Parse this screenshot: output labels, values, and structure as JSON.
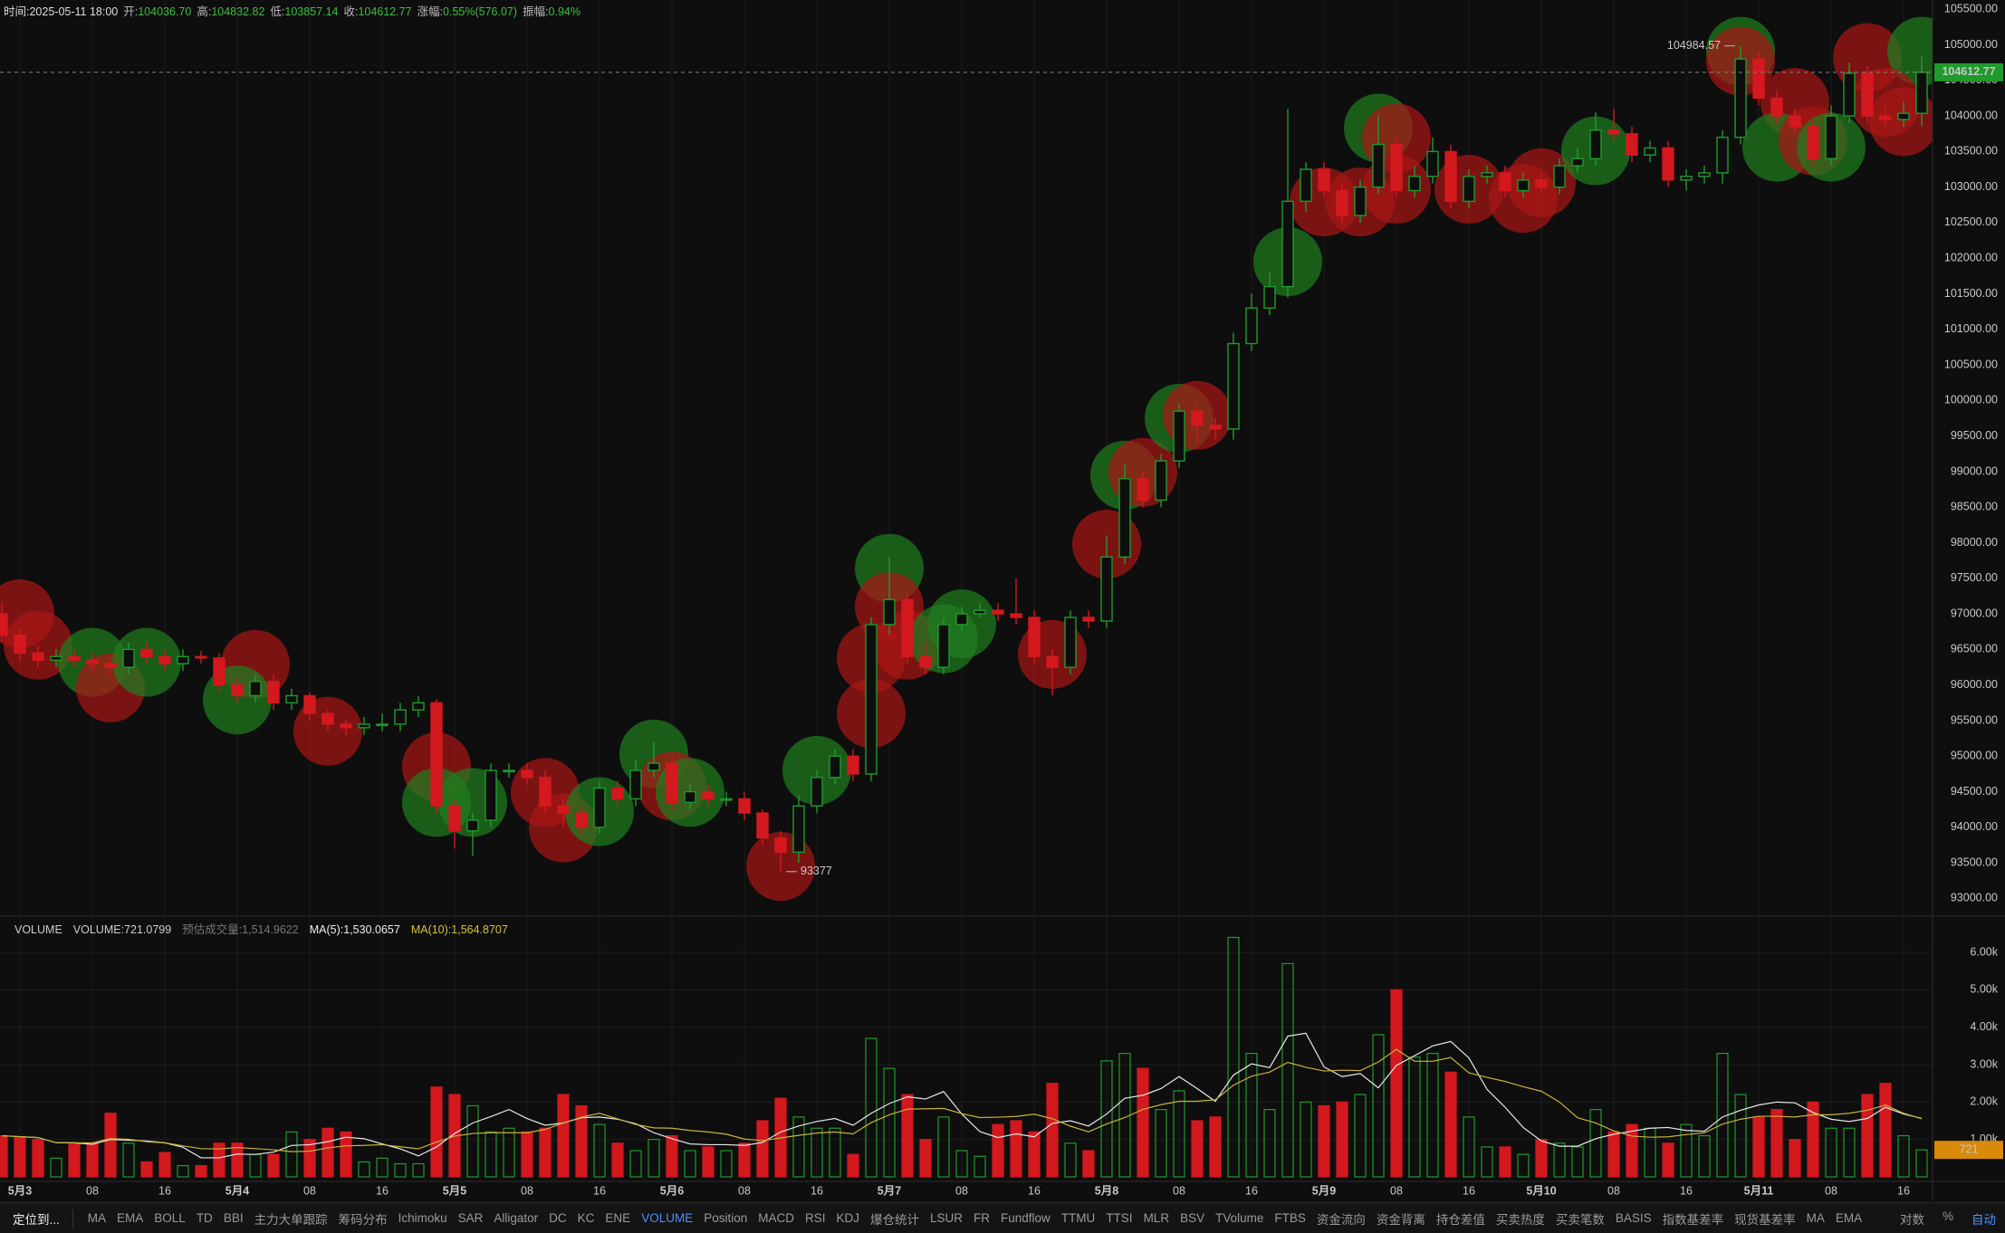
{
  "header": {
    "time": "时间:2025-05-11 18:00",
    "fields": [
      {
        "label": "开:",
        "value": "104036.70"
      },
      {
        "label": "高:",
        "value": "104832.82"
      },
      {
        "label": "低:",
        "value": "103857.14"
      },
      {
        "label": "收:",
        "value": "104612.77"
      },
      {
        "label": "涨幅:",
        "value": "0.55%(576.07)"
      },
      {
        "label": "振幅:",
        "value": "0.94%"
      }
    ]
  },
  "volume_header": {
    "indicator": "VOLUME",
    "fields": [
      "VOLUME:721.0799",
      "预估成交量:1,514.9622",
      "MA(5):1,530.0657",
      "MA(10):1,564.8707"
    ]
  },
  "toolbar": {
    "locate": "定位到...",
    "indicators": [
      "MA",
      "EMA",
      "BOLL",
      "TD",
      "BBI",
      "主力大单跟踪",
      "筹码分布",
      "Ichimoku",
      "SAR",
      "Alligator",
      "DC",
      "KC",
      "ENE",
      "VOLUME",
      "Position",
      "MACD",
      "RSI",
      "KDJ",
      "爆仓统计",
      "LSUR",
      "FR",
      "Fundflow",
      "TTMU",
      "TTSI",
      "MLR",
      "BSV",
      "TVolume",
      "FTBS",
      "资金流向",
      "资金背离",
      "持仓差值",
      "买卖热度",
      "买卖笔数",
      "BASIS",
      "指数基差率",
      "现货基差率",
      "MA",
      "EMA"
    ],
    "active": "VOLUME",
    "controls": [
      "对数",
      "%",
      "自动"
    ]
  },
  "chart_data": [
    {
      "type": "candlestick",
      "up_color": "#1f9a2b",
      "down_color": "#d3181e",
      "grid": true,
      "ylim": [
        92840,
        105630
      ],
      "yticks": [
        {
          "value": 93000,
          "label": "93000.00"
        },
        {
          "value": 93500,
          "label": "93500.00"
        },
        {
          "value": 94000,
          "label": "94000.00"
        },
        {
          "value": 94500,
          "label": "94500.00"
        },
        {
          "value": 95000,
          "label": "95000.00"
        },
        {
          "value": 95500,
          "label": "95500.00"
        },
        {
          "value": 96000,
          "label": "96000.00"
        },
        {
          "value": 96500,
          "label": "96500.00"
        },
        {
          "value": 97000,
          "label": "97000.00"
        },
        {
          "value": 97500,
          "label": "97500.00"
        },
        {
          "value": 98000,
          "label": "98000.00"
        },
        {
          "value": 98500,
          "label": "98500.00"
        },
        {
          "value": 99000,
          "label": "99000.00"
        },
        {
          "value": 99500,
          "label": "99500.00"
        },
        {
          "value": 100000,
          "label": "100000.00"
        },
        {
          "value": 100500,
          "label": "100500.00"
        },
        {
          "value": 101000,
          "label": "101000.00"
        },
        {
          "value": 101500,
          "label": "101500.00"
        },
        {
          "value": 102000,
          "label": "102000.00"
        },
        {
          "value": 102500,
          "label": "102500.00"
        },
        {
          "value": 103000,
          "label": "103000.00"
        },
        {
          "value": 103500,
          "label": "103500.00"
        },
        {
          "value": 104000,
          "label": "104000.00"
        },
        {
          "value": 104500,
          "label": "104500.00"
        },
        {
          "value": 105000,
          "label": "105000.00"
        },
        {
          "value": 105500,
          "label": "105500.00"
        }
      ],
      "xticks": [
        {
          "value": 1,
          "label": "5月3"
        },
        {
          "value": 5,
          "label": "08"
        },
        {
          "value": 9,
          "label": "16"
        },
        {
          "value": 13,
          "label": "5月4"
        },
        {
          "value": 17,
          "label": "08"
        },
        {
          "value": 21,
          "label": "16"
        },
        {
          "value": 25,
          "label": "5月5"
        },
        {
          "value": 29,
          "label": "08"
        },
        {
          "value": 33,
          "label": "16"
        },
        {
          "value": 37,
          "label": "5月6"
        },
        {
          "value": 41,
          "label": "08"
        },
        {
          "value": 45,
          "label": "16"
        },
        {
          "value": 49,
          "label": "5月7"
        },
        {
          "value": 53,
          "label": "08"
        },
        {
          "value": 57,
          "label": "16"
        },
        {
          "value": 61,
          "label": "5月8"
        },
        {
          "value": 65,
          "label": "08"
        },
        {
          "value": 69,
          "label": "16"
        },
        {
          "value": 73,
          "label": "5月9"
        },
        {
          "value": 77,
          "label": "08"
        },
        {
          "value": 81,
          "label": "16"
        },
        {
          "value": 85,
          "label": "5月10"
        },
        {
          "value": 89,
          "label": "08"
        },
        {
          "value": 93,
          "label": "16"
        },
        {
          "value": 97,
          "label": "5月11"
        },
        {
          "value": 101,
          "label": "08"
        },
        {
          "value": 105,
          "label": "16"
        }
      ],
      "open": [
        97000,
        96700,
        96450,
        96350,
        96400,
        96350,
        96300,
        96250,
        96500,
        96400,
        96300,
        96400,
        96380,
        96000,
        95850,
        96050,
        95750,
        95850,
        95600,
        95450,
        95400,
        95450,
        95450,
        95650,
        95750,
        94300,
        93950,
        94100,
        94800,
        94800,
        94700,
        94300,
        94200,
        94000,
        94550,
        94400,
        94800,
        94900,
        94350,
        94500,
        94400,
        94400,
        94200,
        93850,
        93650,
        94300,
        94700,
        95000,
        94750,
        96850,
        97200,
        96400,
        96250,
        96850,
        97000,
        97050,
        97000,
        96950,
        96400,
        96250,
        96950,
        96900,
        97800,
        98900,
        98600,
        99150,
        99850,
        99650,
        99600,
        100800,
        101300,
        101600,
        102800,
        103250,
        102950,
        102600,
        103000,
        103600,
        102950,
        103150,
        103500,
        102800,
        103150,
        103200,
        102950,
        103100,
        103000,
        103300,
        103400,
        103800,
        103750,
        103450,
        103550,
        103100,
        103150,
        103200,
        103700,
        104800,
        104250,
        104000,
        103850,
        103400,
        104000,
        104600,
        104000,
        103950,
        104036.7
      ],
      "high": [
        97150,
        96800,
        96550,
        96500,
        96500,
        96450,
        96400,
        96600,
        96600,
        96500,
        96500,
        96480,
        96450,
        96100,
        96150,
        96150,
        95950,
        95900,
        95650,
        95500,
        95550,
        95600,
        95750,
        95850,
        95800,
        94400,
        94200,
        94900,
        94900,
        94900,
        94800,
        94400,
        94300,
        94650,
        94650,
        94950,
        95200,
        95000,
        94600,
        94600,
        94500,
        94500,
        94250,
        93950,
        94450,
        94800,
        95100,
        95100,
        96950,
        97800,
        97300,
        96600,
        96950,
        97100,
        97150,
        97150,
        97500,
        97050,
        96500,
        97050,
        97050,
        98100,
        99100,
        99000,
        99250,
        99950,
        99950,
        99750,
        100950,
        101500,
        101800,
        104100,
        103350,
        103350,
        103050,
        103100,
        104000,
        103700,
        103300,
        103700,
        103600,
        103250,
        103300,
        103300,
        103200,
        103200,
        103400,
        103550,
        104050,
        104100,
        103850,
        103650,
        103650,
        103250,
        103300,
        103800,
        104984.57,
        104900,
        104350,
        104100,
        103950,
        104150,
        104750,
        104700,
        104150,
        104200,
        104832.82
      ],
      "low": [
        96600,
        96350,
        96250,
        96250,
        96250,
        96200,
        96150,
        96150,
        96300,
        96200,
        96200,
        96300,
        95900,
        95750,
        95750,
        95650,
        95650,
        95500,
        95350,
        95300,
        95300,
        95350,
        95350,
        95550,
        94200,
        93700,
        93600,
        94000,
        94700,
        94600,
        94200,
        94000,
        93900,
        93900,
        94300,
        94300,
        94700,
        94250,
        94250,
        94300,
        94300,
        94100,
        93750,
        93377,
        93500,
        94200,
        94600,
        94650,
        94650,
        96700,
        96300,
        96150,
        96150,
        96750,
        96950,
        96900,
        96850,
        96300,
        95850,
        96150,
        96800,
        96800,
        97700,
        98500,
        98500,
        99050,
        99400,
        99450,
        99450,
        100700,
        101200,
        101450,
        102650,
        102850,
        102500,
        102500,
        102900,
        102850,
        102850,
        103050,
        102700,
        102700,
        103050,
        102850,
        102850,
        102900,
        102900,
        103200,
        103300,
        103650,
        103350,
        103350,
        103000,
        102950,
        103050,
        103050,
        103600,
        104150,
        103900,
        103750,
        103300,
        103300,
        103900,
        103900,
        103850,
        103850,
        103857.14
      ],
      "close": [
        96700,
        96450,
        96350,
        96400,
        96350,
        96300,
        96250,
        96500,
        96400,
        96300,
        96400,
        96380,
        96000,
        95850,
        96050,
        95750,
        95850,
        95600,
        95450,
        95400,
        95450,
        95450,
        95650,
        95750,
        94300,
        93950,
        94100,
        94800,
        94800,
        94700,
        94300,
        94200,
        94000,
        94550,
        94400,
        94800,
        94900,
        94350,
        94500,
        94400,
        94400,
        94200,
        93850,
        93650,
        94300,
        94700,
        95000,
        94750,
        96850,
        97200,
        96400,
        96250,
        96850,
        97000,
        97050,
        97000,
        96950,
        96400,
        96250,
        96950,
        96900,
        97800,
        98900,
        98600,
        99150,
        99850,
        99650,
        99600,
        100800,
        101300,
        101600,
        102800,
        103250,
        102950,
        102600,
        103000,
        103600,
        102950,
        103150,
        103500,
        102800,
        103150,
        103200,
        102950,
        103100,
        103000,
        103300,
        103400,
        103800,
        103750,
        103450,
        103550,
        103100,
        103150,
        103200,
        103700,
        104800,
        104250,
        104000,
        103850,
        103400,
        104000,
        104600,
        104000,
        103950,
        104036.7,
        104612.77
      ],
      "bubbles": [
        {
          "x": 1,
          "price": 97000,
          "color": "#a81616"
        },
        {
          "x": 2,
          "price": 96560,
          "color": "#a81616"
        },
        {
          "x": 5,
          "price": 96320,
          "color": "#1e7d1e"
        },
        {
          "x": 6,
          "price": 95960,
          "color": "#a81616"
        },
        {
          "x": 8,
          "price": 96320,
          "color": "#1e7d1e"
        },
        {
          "x": 14,
          "price": 96290,
          "color": "#a81616"
        },
        {
          "x": 13,
          "price": 95790,
          "color": "#1e7d1e"
        },
        {
          "x": 18,
          "price": 95350,
          "color": "#a81616"
        },
        {
          "x": 24,
          "price": 94850,
          "color": "#a81616"
        },
        {
          "x": 24,
          "price": 94350,
          "color": "#1e7d1e"
        },
        {
          "x": 26,
          "price": 94350,
          "color": "#1e7d1e"
        },
        {
          "x": 30,
          "price": 94490,
          "color": "#a81616"
        },
        {
          "x": 31,
          "price": 93990,
          "color": "#a81616"
        },
        {
          "x": 33,
          "price": 94220,
          "color": "#1e7d1e"
        },
        {
          "x": 36,
          "price": 95030,
          "color": "#1e7d1e"
        },
        {
          "x": 37,
          "price": 94580,
          "color": "#a81616"
        },
        {
          "x": 38,
          "price": 94490,
          "color": "#1e7d1e"
        },
        {
          "x": 43,
          "price": 93450,
          "color": "#a81616"
        },
        {
          "x": 45,
          "price": 94800,
          "color": "#1e7d1e"
        },
        {
          "x": 49,
          "price": 97640,
          "color": "#1e7d1e"
        },
        {
          "x": 49,
          "price": 97100,
          "color": "#a81616"
        },
        {
          "x": 48,
          "price": 96380,
          "color": "#a81616"
        },
        {
          "x": 48,
          "price": 95600,
          "color": "#a81616"
        },
        {
          "x": 50,
          "price": 96560,
          "color": "#a81616"
        },
        {
          "x": 53,
          "price": 96860,
          "color": "#1e7d1e"
        },
        {
          "x": 52,
          "price": 96650,
          "color": "#1e7d1e"
        },
        {
          "x": 58,
          "price": 96430,
          "color": "#a81616"
        },
        {
          "x": 61,
          "price": 97980,
          "color": "#a81616"
        },
        {
          "x": 62,
          "price": 98950,
          "color": "#1e7d1e"
        },
        {
          "x": 63,
          "price": 98990,
          "color": "#a81616"
        },
        {
          "x": 65,
          "price": 99750,
          "color": "#1e7d1e"
        },
        {
          "x": 66,
          "price": 99790,
          "color": "#a81616"
        },
        {
          "x": 71,
          "price": 101950,
          "color": "#1e7d1e"
        },
        {
          "x": 76,
          "price": 103830,
          "color": "#1e7d1e"
        },
        {
          "x": 77,
          "price": 103690,
          "color": "#a81616"
        },
        {
          "x": 73,
          "price": 102790,
          "color": "#a81616"
        },
        {
          "x": 75,
          "price": 102790,
          "color": "#a81616"
        },
        {
          "x": 77,
          "price": 102970,
          "color": "#a81616"
        },
        {
          "x": 81,
          "price": 102970,
          "color": "#a81616"
        },
        {
          "x": 84,
          "price": 102840,
          "color": "#a81616"
        },
        {
          "x": 85,
          "price": 103060,
          "color": "#a81616"
        },
        {
          "x": 88,
          "price": 103510,
          "color": "#1e7d1e"
        },
        {
          "x": 96,
          "price": 104910,
          "color": "#1e7d1e"
        },
        {
          "x": 96,
          "price": 104770,
          "color": "#a81616"
        },
        {
          "x": 99,
          "price": 104190,
          "color": "#a81616"
        },
        {
          "x": 98,
          "price": 103560,
          "color": "#1e7d1e"
        },
        {
          "x": 100,
          "price": 103650,
          "color": "#a81616"
        },
        {
          "x": 101,
          "price": 103560,
          "color": "#1e7d1e"
        },
        {
          "x": 103,
          "price": 104820,
          "color": "#a81616"
        },
        {
          "x": 106,
          "price": 104910,
          "color": "#1e7d1e"
        },
        {
          "x": 104,
          "price": 104190,
          "color": "#a81616"
        },
        {
          "x": 105,
          "price": 103920,
          "color": "#a81616"
        }
      ]
    },
    {
      "type": "bar",
      "ylim": [
        0,
        6920
      ],
      "yticks": [
        {
          "value": 1000,
          "label": "1.00k"
        },
        {
          "value": 2000,
          "label": "2.00k"
        },
        {
          "value": 3000,
          "label": "3.00k"
        },
        {
          "value": 4000,
          "label": "4.00k"
        },
        {
          "value": 5000,
          "label": "5.00k"
        },
        {
          "value": 6000,
          "label": "6.00k"
        }
      ],
      "values": [
        1100,
        1050,
        1000,
        500,
        900,
        900,
        1700,
        900,
        400,
        650,
        300,
        300,
        900,
        900,
        600,
        600,
        1200,
        1000,
        1300,
        1200,
        400,
        500,
        350,
        350,
        2400,
        2200,
        1900,
        1200,
        1300,
        1200,
        1300,
        2200,
        1900,
        1400,
        900,
        700,
        1000,
        1100,
        700,
        800,
        700,
        900,
        1500,
        2100,
        1600,
        1300,
        1300,
        600,
        3700,
        2900,
        2200,
        1000,
        1600,
        700,
        550,
        1400,
        1500,
        1200,
        2500,
        900,
        700,
        3100,
        3300,
        2900,
        1800,
        2300,
        1500,
        1600,
        6400,
        3300,
        1800,
        5700,
        2000,
        1900,
        2000,
        2200,
        3800,
        5000,
        3200,
        3300,
        2800,
        1600,
        800,
        800,
        600,
        1000,
        900,
        800,
        1800,
        1200,
        1400,
        1300,
        900,
        1400,
        1100,
        3300,
        2200,
        1600,
        1800,
        1000,
        2000,
        1300,
        1300,
        2200,
        2500,
        1100,
        721.0799
      ],
      "last_value_label": "721",
      "ma_colors": [
        "#e8e8e8",
        "#c9b23a"
      ]
    }
  ]
}
